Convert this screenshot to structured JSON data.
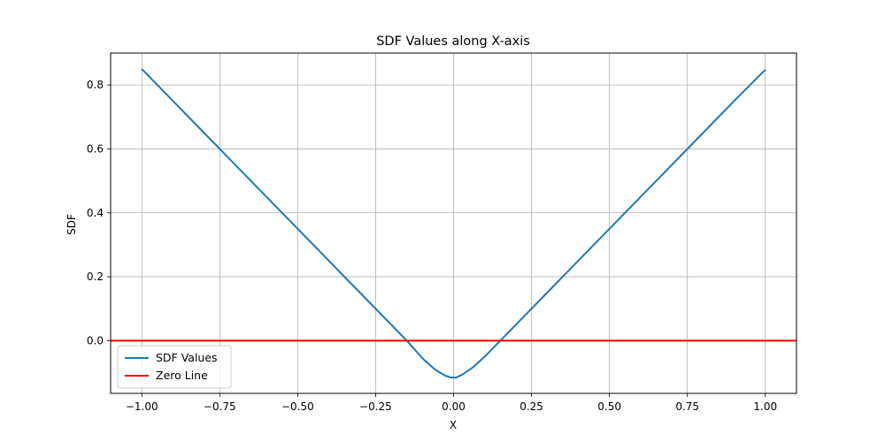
{
  "chart_data": {
    "type": "line",
    "title": "SDF Values along X-axis",
    "xlabel": "X",
    "ylabel": "SDF",
    "xlim": [
      -1.1,
      1.1
    ],
    "ylim": [
      -0.165,
      0.9
    ],
    "grid": true,
    "legend_position": "lower-left",
    "xticks": [
      -1.0,
      -0.75,
      -0.5,
      -0.25,
      0.0,
      0.25,
      0.5,
      0.75,
      1.0
    ],
    "xtick_labels": [
      "−1.00",
      "−0.75",
      "−0.50",
      "−0.25",
      "0.00",
      "0.25",
      "0.50",
      "0.75",
      "1.00"
    ],
    "yticks": [
      0.0,
      0.2,
      0.4,
      0.6,
      0.8
    ],
    "ytick_labels": [
      "0.0",
      "0.2",
      "0.4",
      "0.6",
      "0.8"
    ],
    "series": [
      {
        "name": "SDF Values",
        "color": "#1f77b4",
        "x": [
          -1.0,
          -0.9,
          -0.8,
          -0.7,
          -0.6,
          -0.5,
          -0.4,
          -0.3,
          -0.2,
          -0.15,
          -0.1,
          -0.06,
          -0.03,
          -0.01,
          0.0,
          0.01,
          0.03,
          0.06,
          0.1,
          0.15,
          0.2,
          0.3,
          0.4,
          0.5,
          0.6,
          0.7,
          0.8,
          0.9,
          1.0
        ],
        "y": [
          0.85,
          0.75,
          0.65,
          0.55,
          0.45,
          0.35,
          0.25,
          0.15,
          0.05,
          0.0,
          -0.055,
          -0.09,
          -0.108,
          -0.115,
          -0.116,
          -0.115,
          -0.105,
          -0.085,
          -0.05,
          0.0,
          0.05,
          0.15,
          0.25,
          0.35,
          0.45,
          0.55,
          0.65,
          0.75,
          0.848
        ]
      },
      {
        "name": "Zero Line",
        "color": "#ff0000",
        "type": "hline",
        "y": 0.0
      }
    ]
  }
}
